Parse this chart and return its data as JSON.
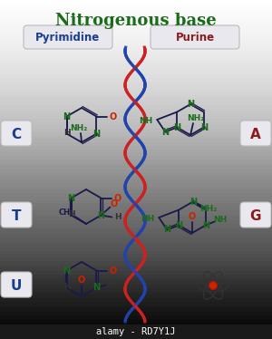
{
  "title": "Nitrogenous base",
  "title_color": "#1a6b1a",
  "title_fontsize": 13,
  "pyrimidine_label": "Pyrimidine",
  "purine_label": "Purine",
  "pyrimidine_color": "#1a3c8c",
  "purine_color": "#8c1a1a",
  "letter_C": "C",
  "letter_T": "T",
  "letter_U": "U",
  "letter_A": "A",
  "letter_G": "G",
  "bond_color": "#1a1a4a",
  "N_color": "#1a6b1a",
  "O_color": "#cc2200",
  "H_color": "#333333",
  "CH3_color": "#1a1a4a",
  "footer_text": "alamy - RD7Y1J",
  "footer_bg": "#1a1a1a",
  "footer_color": "#ffffff",
  "bg_light": "#f0f0f0",
  "bg_dark": "#c0c0c0",
  "dna_blue": "#2244aa",
  "dna_red": "#cc2222"
}
